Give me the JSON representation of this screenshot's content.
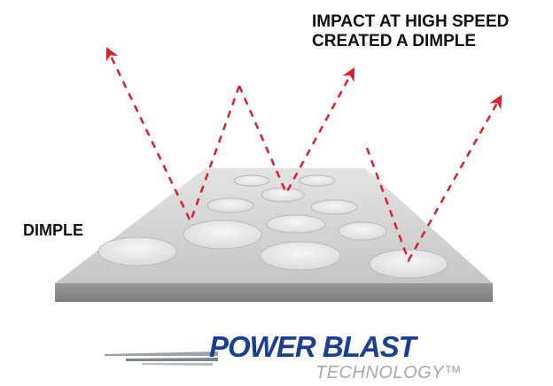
{
  "labels": {
    "impact_line1": "IMPACT AT HIGH SPEED",
    "impact_line2": "CREATED A DIMPLE",
    "dimple": "DIMPLE"
  },
  "logo": {
    "main": "POWER BLAST",
    "sub": "TECHNOLOGY™"
  },
  "colors": {
    "arrow": "#d9202c",
    "plate_top": "#d3d3d3",
    "plate_front": "#8e8e8e",
    "dimple_fill": "#eeeeee",
    "logo_blue": "#1a3f93",
    "logo_gray": "#a9a9a9"
  }
}
